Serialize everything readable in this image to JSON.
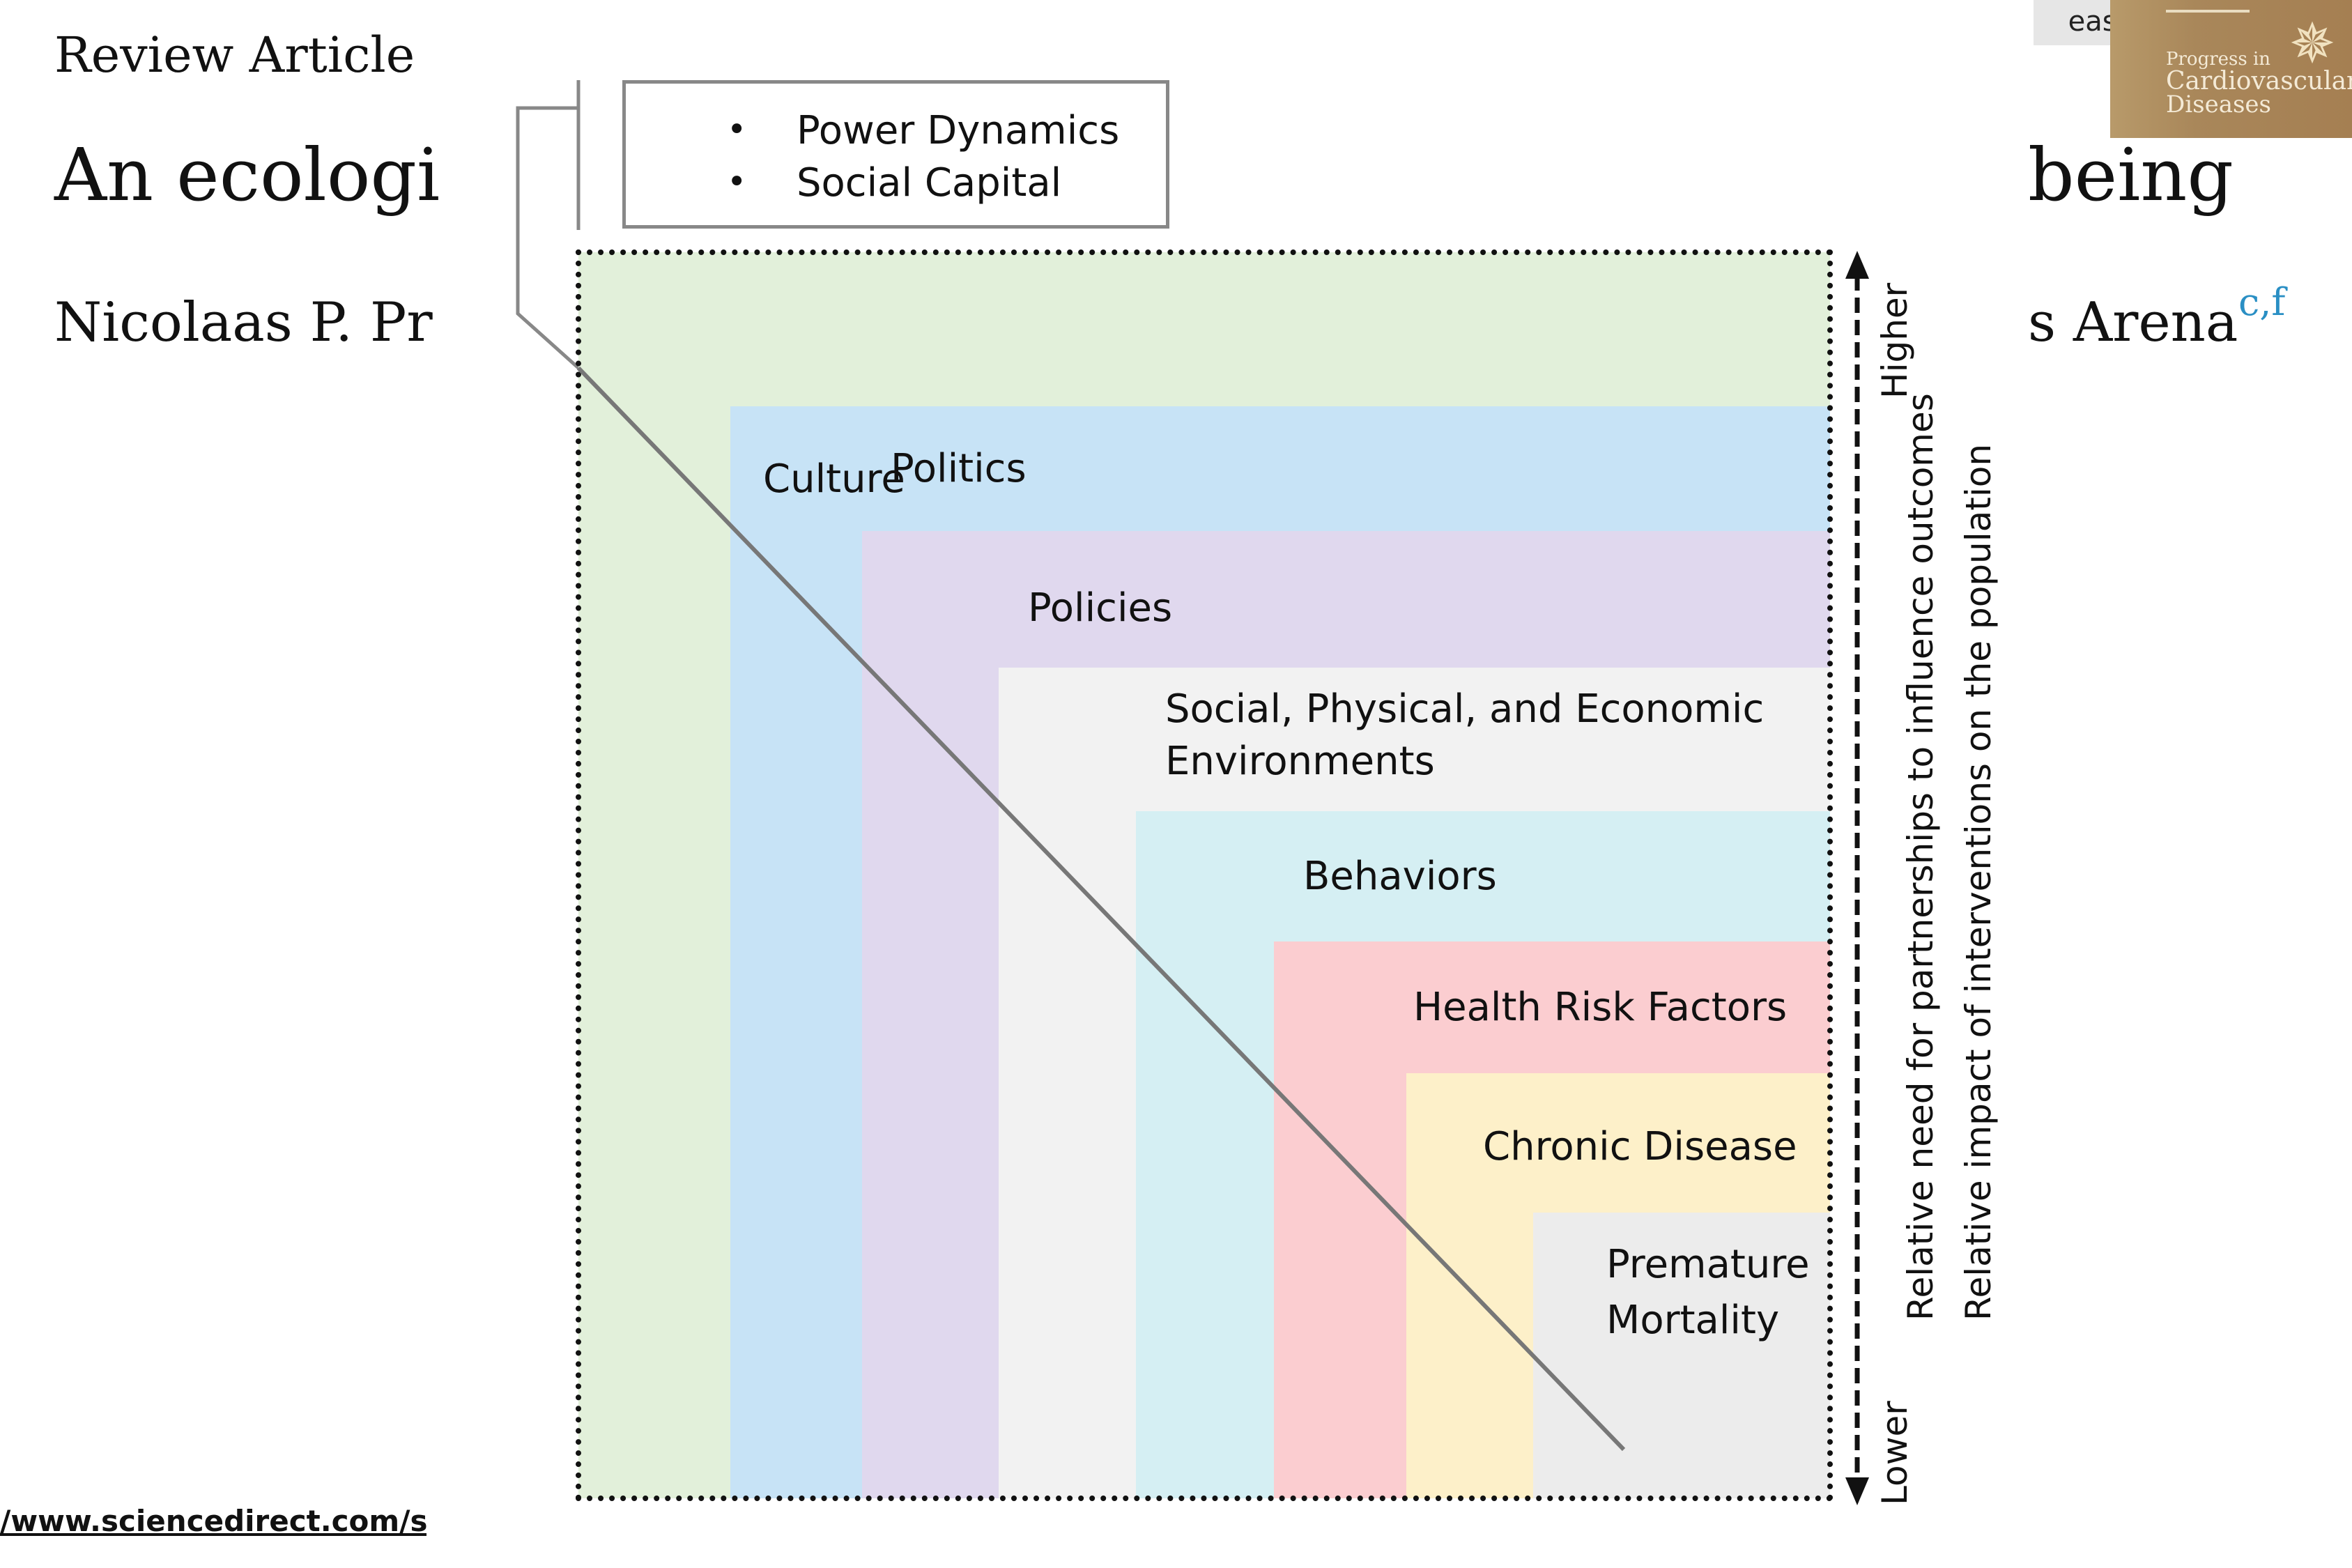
{
  "article": {
    "kind": "Review Article",
    "title_left": "An ecologi",
    "title_right": "being",
    "authors_left": "Nicolaas P. Pr",
    "authors_right": "s Arena",
    "author_superscript": "c,f",
    "url_fragment": "/www.sciencedirect.com/scie"
  },
  "journal": {
    "tab_text": "eases",
    "cover_line1": "Progress in",
    "cover_line2": "Cardiovascular",
    "cover_line3": "Diseases",
    "cover_star": "✵"
  },
  "callout": {
    "items": [
      "Power Dynamics",
      "Social Capital"
    ],
    "bullet": "•"
  },
  "layers": [
    {
      "label": "Culture",
      "color": "#e2f0da"
    },
    {
      "label": "Politics",
      "color": "#c7e3f6"
    },
    {
      "label": "Policies",
      "color": "#e0d8ee"
    },
    {
      "label_line1": "Social, Physical, and Economic",
      "label_line2": "Environments",
      "color": "#f2f2f2"
    },
    {
      "label": "Behaviors",
      "color": "#d5eff3"
    },
    {
      "label": "Health Risk Factors",
      "color": "#fbcdd0"
    },
    {
      "label": "Chronic Disease",
      "color": "#fdf0c9"
    },
    {
      "label_line1": "Premature",
      "label_line2": "Mortality",
      "color": "#ececec"
    }
  ],
  "axis": {
    "higher": "Higher",
    "lower": "Lower",
    "label_need": "Relative need for partnerships to influence outcomes",
    "label_impact": "Relative impact of interventions on the population"
  }
}
